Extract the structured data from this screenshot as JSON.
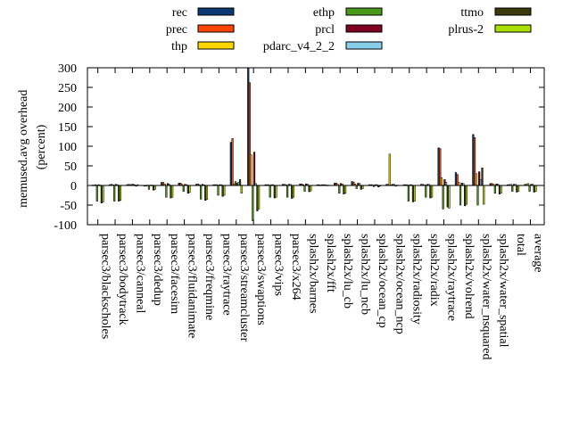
{
  "chart_data": {
    "type": "bar",
    "title": "",
    "xlabel": "",
    "ylabel": "memused.avg overhead\n(percent)",
    "ylim": [
      -100,
      300
    ],
    "yticks": [
      -100,
      -50,
      0,
      50,
      100,
      150,
      200,
      250,
      300
    ],
    "grid": false,
    "legend_position": "top",
    "categories": [
      "parsec3/blackscholes",
      "parsec3/bodytrack",
      "parsec3/canneal",
      "parsec3/dedup",
      "parsec3/facesim",
      "parsec3/fluidanimate",
      "parsec3/freqmine",
      "parsec3/raytrace",
      "parsec3/streamcluster",
      "parsec3/swaptions",
      "parsec3/vips",
      "parsec3/x264",
      "splash2x/barnes",
      "splash2x/fft",
      "splash2x/lu_cb",
      "splash2x/lu_ncb",
      "splash2x/ocean_cp",
      "splash2x/ocean_ncp",
      "splash2x/radiosity",
      "splash2x/radix",
      "splash2x/raytrace",
      "splash2x/volrend",
      "splash2x/water_nsquared",
      "splash2x/water_spatial",
      "total",
      "average"
    ],
    "series": [
      {
        "name": "rec",
        "color": "#0b3a73",
        "values": [
          1,
          2,
          2,
          0,
          8,
          6,
          3,
          2,
          110,
          300,
          2,
          3,
          4,
          2,
          6,
          10,
          2,
          3,
          2,
          3,
          96,
          33,
          130,
          5,
          2,
          3
        ]
      },
      {
        "name": "prec",
        "color": "#ff4500",
        "values": [
          1,
          3,
          3,
          0,
          8,
          6,
          4,
          2,
          120,
          262,
          2,
          3,
          4,
          2,
          6,
          9,
          2,
          3,
          2,
          3,
          94,
          28,
          122,
          5,
          2,
          3
        ]
      },
      {
        "name": "thp",
        "color": "#ffd700",
        "values": [
          2,
          2,
          2,
          1,
          4,
          3,
          2,
          2,
          4,
          78,
          2,
          2,
          2,
          1,
          3,
          4,
          2,
          80,
          2,
          2,
          20,
          8,
          30,
          3,
          3,
          5
        ]
      },
      {
        "name": "ethp",
        "color": "#4a9a1a",
        "values": [
          -40,
          -40,
          3,
          -10,
          -30,
          -15,
          -35,
          -25,
          10,
          -90,
          -30,
          -30,
          -15,
          2,
          -20,
          -8,
          -3,
          2,
          -40,
          -30,
          -60,
          -50,
          -50,
          -20,
          -15,
          -15
        ]
      },
      {
        "name": "prcl",
        "color": "#800020",
        "values": [
          2,
          3,
          3,
          1,
          5,
          3,
          3,
          2,
          6,
          85,
          2,
          3,
          4,
          2,
          5,
          6,
          2,
          3,
          2,
          3,
          15,
          6,
          35,
          4,
          3,
          3
        ]
      },
      {
        "name": "pdarc_v4_2_2",
        "color": "#87ceeb",
        "values": [
          1,
          2,
          2,
          1,
          3,
          2,
          2,
          2,
          8,
          5,
          2,
          3,
          3,
          2,
          4,
          5,
          2,
          3,
          2,
          3,
          8,
          5,
          15,
          3,
          3,
          3
        ]
      },
      {
        "name": "ttmo",
        "color": "#3a3a0a",
        "values": [
          -45,
          -40,
          -2,
          -12,
          -32,
          -20,
          -38,
          -28,
          15,
          -65,
          -32,
          -33,
          -16,
          1,
          -22,
          -10,
          -4,
          -2,
          -42,
          -32,
          -55,
          -52,
          45,
          -22,
          -17,
          -17
        ]
      },
      {
        "name": "plrus-2",
        "color": "#aadd00",
        "values": [
          -42,
          -38,
          2,
          -10,
          -30,
          -18,
          -36,
          -25,
          -20,
          -60,
          -30,
          -30,
          -14,
          1,
          -20,
          -8,
          -2,
          1,
          -40,
          -30,
          -58,
          -48,
          -48,
          -20,
          -15,
          -15
        ]
      }
    ]
  }
}
